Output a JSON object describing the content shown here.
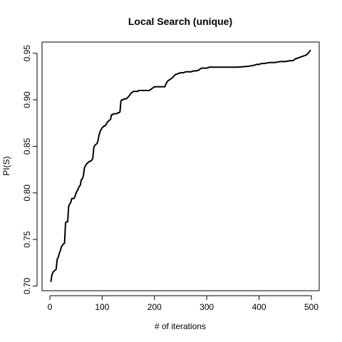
{
  "chart_data": {
    "type": "line",
    "title": "Local Search (unique)",
    "xlabel": "# of iterations",
    "ylabel": "PI(S)",
    "xlim": [
      -15,
      515
    ],
    "ylim": [
      0.695,
      0.962
    ],
    "xticks": [
      0,
      100,
      200,
      300,
      400,
      500
    ],
    "xtick_labels": [
      "0",
      "100",
      "200",
      "300",
      "400",
      "500"
    ],
    "yticks": [
      0.7,
      0.75,
      0.8,
      0.85,
      0.9,
      0.95
    ],
    "ytick_labels": [
      "0.70",
      "0.75",
      "0.80",
      "0.85",
      "0.90",
      "0.95"
    ],
    "grid": false,
    "series": [
      {
        "x": [
          2,
          4,
          6,
          8,
          10,
          12,
          14,
          16,
          18,
          20,
          22,
          24,
          26,
          28,
          30,
          32,
          34,
          36,
          38,
          40,
          42,
          44,
          46,
          48,
          50,
          52,
          54,
          56,
          58,
          60,
          62,
          64,
          66,
          68,
          70,
          72,
          74,
          76,
          78,
          80,
          82,
          84,
          86,
          88,
          90,
          92,
          94,
          96,
          98,
          100,
          102,
          104,
          106,
          108,
          110,
          112,
          114,
          116,
          118,
          120,
          122,
          124,
          126,
          128,
          130,
          132,
          134,
          136,
          138,
          140,
          142,
          144,
          146,
          148,
          150,
          155,
          160,
          165,
          168,
          170,
          180,
          190,
          200,
          210,
          220,
          222,
          225,
          230,
          235,
          238,
          240,
          245,
          250,
          255,
          260,
          265,
          270,
          275,
          280,
          285,
          290,
          295,
          300,
          305,
          310,
          320,
          340,
          360,
          380,
          390,
          395,
          400,
          405,
          410,
          420,
          430,
          440,
          450,
          460,
          465,
          470,
          480,
          485,
          490,
          494,
          498
        ],
        "y": [
          0.705,
          0.712,
          0.715,
          0.716,
          0.717,
          0.718,
          0.729,
          0.731,
          0.735,
          0.738,
          0.742,
          0.744,
          0.745,
          0.746,
          0.768,
          0.769,
          0.769,
          0.786,
          0.788,
          0.79,
          0.794,
          0.794,
          0.794,
          0.796,
          0.8,
          0.802,
          0.804,
          0.807,
          0.808,
          0.814,
          0.815,
          0.818,
          0.827,
          0.829,
          0.831,
          0.832,
          0.833,
          0.834,
          0.834,
          0.835,
          0.837,
          0.849,
          0.851,
          0.852,
          0.853,
          0.856,
          0.862,
          0.866,
          0.868,
          0.87,
          0.871,
          0.872,
          0.872,
          0.874,
          0.876,
          0.877,
          0.878,
          0.879,
          0.884,
          0.884,
          0.885,
          0.885,
          0.885,
          0.885,
          0.886,
          0.886,
          0.887,
          0.899,
          0.9,
          0.9,
          0.901,
          0.901,
          0.901,
          0.902,
          0.903,
          0.907,
          0.909,
          0.909,
          0.909,
          0.91,
          0.91,
          0.91,
          0.914,
          0.914,
          0.914,
          0.917,
          0.92,
          0.922,
          0.924,
          0.926,
          0.927,
          0.928,
          0.929,
          0.929,
          0.93,
          0.93,
          0.93,
          0.931,
          0.931,
          0.932,
          0.934,
          0.934,
          0.934,
          0.935,
          0.935,
          0.935,
          0.935,
          0.935,
          0.936,
          0.937,
          0.938,
          0.938,
          0.939,
          0.939,
          0.94,
          0.94,
          0.941,
          0.941,
          0.942,
          0.942,
          0.944,
          0.946,
          0.947,
          0.948,
          0.95,
          0.953
        ]
      }
    ]
  }
}
